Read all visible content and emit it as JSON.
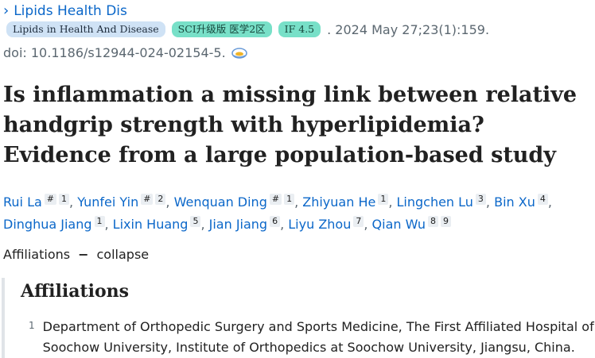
{
  "journal": {
    "link_text": "Lipids Health Dis"
  },
  "pub": {
    "journal_badge": "Lipids in Health And Disease",
    "sci_badge": "SCI升级版 医学2区",
    "if_badge": "IF 4.5",
    "citation": ". 2024 May 27;23(1):159.",
    "doi": "doi: 10.1186/s12944-024-02154-5."
  },
  "title": "Is inflammation a missing link between relative handgrip strength with hyperlipidemia? Evidence from a large population-based study",
  "authors": [
    {
      "name": "Rui La",
      "sups": [
        "#",
        "1"
      ]
    },
    {
      "name": "Yunfei Yin",
      "sups": [
        "#",
        "2"
      ]
    },
    {
      "name": "Wenquan Ding",
      "sups": [
        "#",
        "1"
      ]
    },
    {
      "name": "Zhiyuan He",
      "sups": [
        "1"
      ]
    },
    {
      "name": "Lingchen Lu",
      "sups": [
        "3"
      ]
    },
    {
      "name": "Bin Xu",
      "sups": [
        "4"
      ]
    },
    {
      "name": "Dinghua Jiang",
      "sups": [
        "1"
      ]
    },
    {
      "name": "Lixin Huang",
      "sups": [
        "5"
      ]
    },
    {
      "name": "Jian Jiang",
      "sups": [
        "6"
      ]
    },
    {
      "name": "Liyu Zhou",
      "sups": [
        "7"
      ]
    },
    {
      "name": "Qian Wu",
      "sups": [
        "8",
        "9"
      ]
    }
  ],
  "affiliations": {
    "toggle_label": "Affiliations",
    "toggle_dash": "−",
    "toggle_action": "collapse",
    "heading": "Affiliations",
    "items": [
      {
        "num": "1",
        "text": "Department of Orthopedic Surgery and Sports Medicine, The First Affiliated Hospital of Soochow University, Institute of Orthopedics at Soochow University, Jiangsu, China."
      }
    ]
  },
  "icons": {
    "chevron": "chevron-right-icon",
    "cite": "cite-icon"
  },
  "colors": {
    "link": "#0b67c9",
    "sci_badge": "#78e0c8",
    "journal_badge": "#cfe2f5"
  }
}
